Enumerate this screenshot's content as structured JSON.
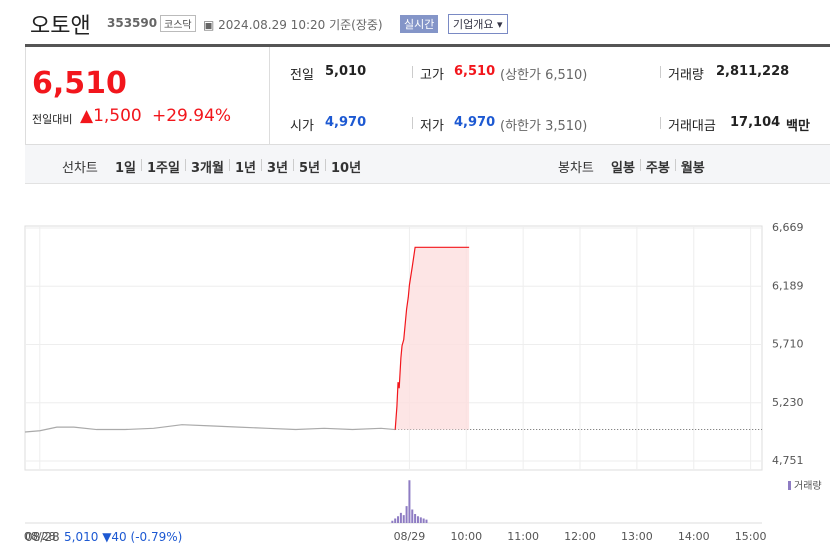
{
  "header": {
    "name": "오토앤",
    "code": "353590",
    "market": "코스닥",
    "time": "2024.08.29 10:20 기준(장중)",
    "realtime": "실시간",
    "overview": "기업개요"
  },
  "price": {
    "current": "6,510",
    "change_label": "전일대비",
    "change": "1,500",
    "change_rate": "+29.94%"
  },
  "stats": {
    "prev_label": "전일",
    "prev": "5,010",
    "high_label": "고가",
    "high": "6,510",
    "upper": "(상한가 6,510)",
    "volume_label": "거래량",
    "volume": "2,811,228",
    "open_label": "시가",
    "open": "4,970",
    "low_label": "저가",
    "low": "4,970",
    "lower": "(하한가 3,510)",
    "amount_label": "거래대금",
    "amount": "17,104",
    "amount_unit": "백만"
  },
  "tabs": {
    "line_label": "선차트",
    "line": [
      "1일",
      "1주일",
      "3개월",
      "1년",
      "3년",
      "5년",
      "10년"
    ],
    "candle_label": "봉차트",
    "candle": [
      "일봉",
      "주봉",
      "월봉"
    ]
  },
  "footer": {
    "date": "08/28",
    "prev_close": "5,010",
    "change": "▼40",
    "change_rate": "(-0.79%)"
  },
  "chart_data": {
    "type": "line",
    "ylim": [
      4751,
      6669
    ],
    "yticks": [
      {
        "value": 4751,
        "label": "4,751"
      },
      {
        "value": 5230,
        "label": "5,230"
      },
      {
        "value": 5710,
        "label": "5,710"
      },
      {
        "value": 6189,
        "label": "6,189"
      },
      {
        "value": 6669,
        "label": "6,669"
      }
    ],
    "xlim": [
      -0.26,
      12.7
    ],
    "xticks": [
      {
        "value": 0,
        "label": "08/28"
      },
      {
        "value": 6.5,
        "label": "08/29"
      },
      {
        "value": 7.5,
        "label": "10:00"
      },
      {
        "value": 8.5,
        "label": "11:00"
      },
      {
        "value": 9.5,
        "label": "12:00"
      },
      {
        "value": 10.5,
        "label": "13:00"
      },
      {
        "value": 11.5,
        "label": "14:00"
      },
      {
        "value": 12.5,
        "label": "15:00"
      }
    ],
    "grid": true,
    "baseline": 5010,
    "series": [
      {
        "color": "#aaaaaa",
        "x": [
          -0.26,
          0.0,
          0.3,
          0.6,
          1.0,
          1.5,
          2.0,
          2.5,
          3.0,
          3.5,
          4.0,
          4.5,
          5.0,
          5.5,
          6.0,
          6.25
        ],
        "values": [
          4990,
          5000,
          5030,
          5030,
          5010,
          5010,
          5020,
          5050,
          5040,
          5030,
          5020,
          5010,
          5020,
          5010,
          5020,
          5010
        ]
      },
      {
        "color": "#f2161c",
        "fill": "#fcdede",
        "x": [
          6.25,
          6.28,
          6.3,
          6.32,
          6.35,
          6.37,
          6.4,
          6.43,
          6.45,
          6.48,
          6.5,
          6.55,
          6.6,
          7.0,
          7.55
        ],
        "values": [
          5010,
          5200,
          5400,
          5350,
          5600,
          5700,
          5750,
          5900,
          6000,
          6100,
          6200,
          6350,
          6510,
          6510,
          6510
        ]
      }
    ],
    "volume": {
      "label": "거래량",
      "color": "#8e7cc3",
      "ylim": [
        0,
        400000
      ],
      "x": [
        6.2,
        6.25,
        6.3,
        6.35,
        6.4,
        6.45,
        6.5,
        6.55,
        6.6,
        6.65,
        6.7,
        6.75,
        6.8
      ],
      "values": [
        20000,
        40000,
        60000,
        90000,
        70000,
        150000,
        380000,
        120000,
        80000,
        60000,
        50000,
        40000,
        30000
      ]
    }
  }
}
